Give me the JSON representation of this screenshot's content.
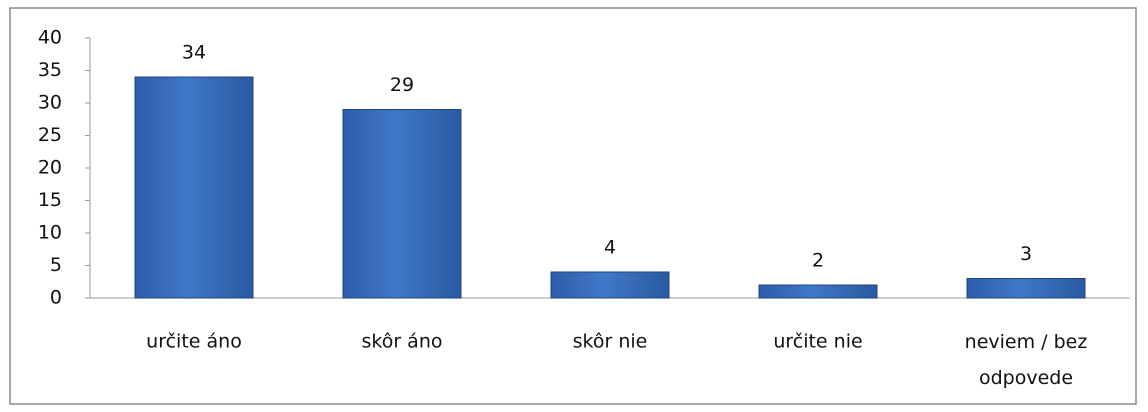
{
  "chart_data": {
    "type": "bar",
    "categories": [
      "určite áno",
      "skôr áno",
      "skôr nie",
      "určite nie",
      "neviem / bez odpovede"
    ],
    "values": [
      34,
      29,
      4,
      2,
      3
    ],
    "color": "#3f78c8",
    "ylim": [
      0,
      40
    ],
    "yticks": [
      0,
      5,
      10,
      15,
      20,
      25,
      30,
      35,
      40
    ],
    "grid": false
  }
}
